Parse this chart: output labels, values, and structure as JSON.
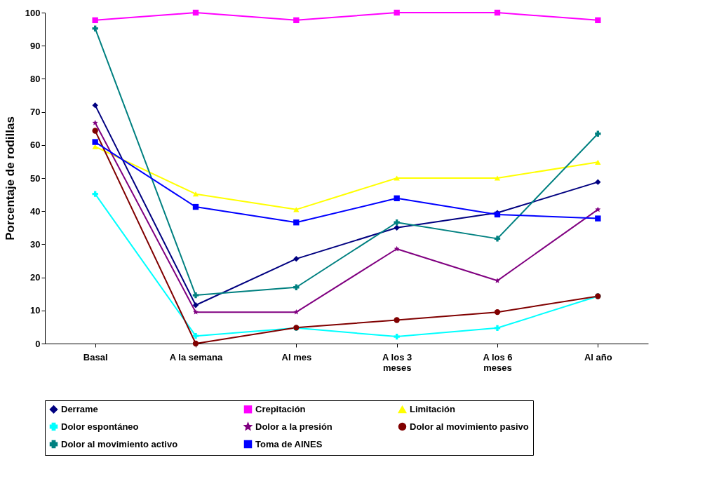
{
  "chart_data": {
    "type": "line",
    "ylabel": "Porcentaje de rodillas",
    "categories": [
      "Basal",
      "A la semana",
      "Al mes",
      "A los 3 meses",
      "A los 6 meses",
      "Al año"
    ],
    "ylim": [
      0,
      100
    ],
    "yticks": [
      0,
      10,
      20,
      30,
      40,
      50,
      60,
      70,
      80,
      90,
      100
    ],
    "grid": false,
    "legend": "bottom",
    "series": [
      {
        "name": "Derrame",
        "color": "#000080",
        "marker": "diamond",
        "values": [
          72,
          11.6,
          25.6,
          35,
          39.5,
          48.8
        ]
      },
      {
        "name": "Crepitación",
        "color": "#ff00ff",
        "marker": "square",
        "values": [
          97.7,
          100,
          97.7,
          100,
          100,
          97.7
        ]
      },
      {
        "name": "Limitación",
        "color": "#ffff00",
        "marker": "triangle",
        "values": [
          59.5,
          45.2,
          40.5,
          50,
          50,
          54.8
        ]
      },
      {
        "name": "Dolor espontáneo",
        "color": "#00ffff",
        "marker": "cross",
        "values": [
          45.2,
          2.3,
          4.7,
          2.1,
          4.7,
          14.3
        ]
      },
      {
        "name": "Dolor a la presión",
        "color": "#800080",
        "marker": "star",
        "values": [
          66.7,
          9.5,
          9.5,
          28.6,
          19,
          40.5
        ]
      },
      {
        "name": "Dolor al movimiento pasivo",
        "color": "#800000",
        "marker": "circle",
        "values": [
          64.3,
          0,
          4.8,
          7.1,
          9.5,
          14.3
        ]
      },
      {
        "name": "Dolor al movimiento activo",
        "color": "#008080",
        "marker": "cross",
        "values": [
          95.2,
          14.6,
          17,
          36.6,
          31.7,
          63.4
        ]
      },
      {
        "name": "Toma de AINES",
        "color": "#0000ff",
        "marker": "square",
        "values": [
          60.9,
          41.3,
          36.6,
          43.9,
          39,
          37.8
        ]
      }
    ]
  }
}
